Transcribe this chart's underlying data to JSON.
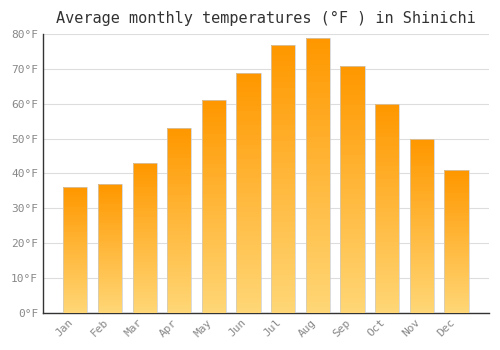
{
  "title": "Average monthly temperatures (°F ) in Shinichi",
  "months": [
    "Jan",
    "Feb",
    "Mar",
    "Apr",
    "May",
    "Jun",
    "Jul",
    "Aug",
    "Sep",
    "Oct",
    "Nov",
    "Dec"
  ],
  "values": [
    36,
    37,
    43,
    53,
    61,
    69,
    77,
    79,
    71,
    60,
    50,
    41
  ],
  "bar_color_light": "#FFD060",
  "bar_color_dark": "#FFA000",
  "background_color": "#FFFFFF",
  "plot_area_color": "#FFFFFF",
  "grid_color": "#DDDDDD",
  "ylim": [
    0,
    80
  ],
  "yticks": [
    0,
    10,
    20,
    30,
    40,
    50,
    60,
    70,
    80
  ],
  "ytick_labels": [
    "0°F",
    "10°F",
    "20°F",
    "30°F",
    "40°F",
    "50°F",
    "60°F",
    "70°F",
    "80°F"
  ],
  "title_fontsize": 11,
  "tick_fontsize": 8,
  "tick_color": "#888888",
  "font_family": "monospace",
  "bar_width": 0.7,
  "bar_edge_color": "#CCCCCC",
  "bar_edge_width": 0.5
}
